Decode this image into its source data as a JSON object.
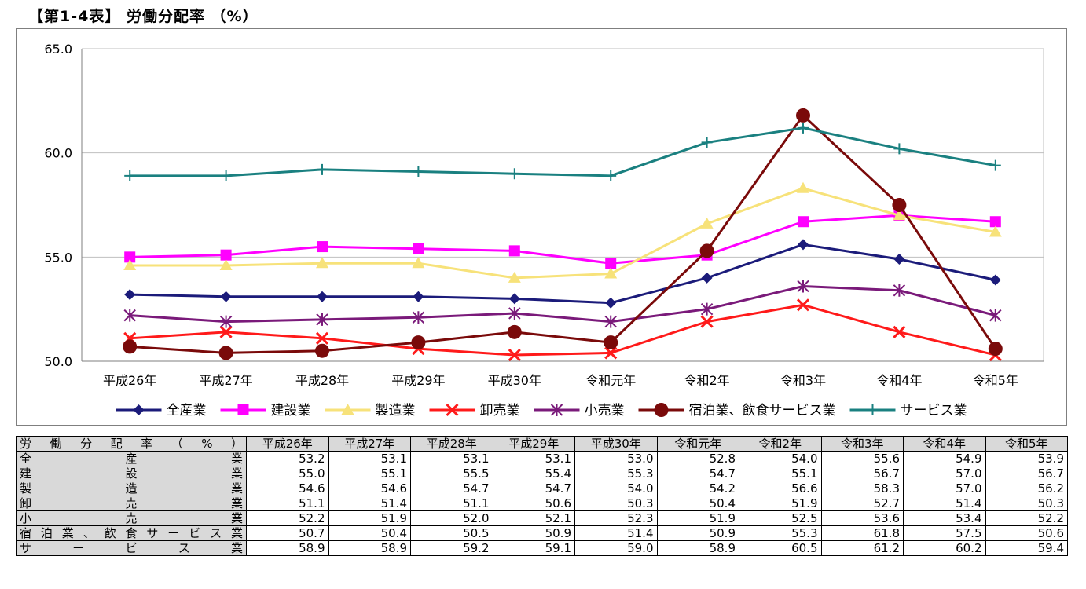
{
  "title": "【第1-4表】 労働分配率 （%）",
  "chart_data": {
    "type": "line",
    "title": "【第1-4表】 労働分配率 （%）",
    "xlabel": "",
    "ylabel": "",
    "categories": [
      "平成26年",
      "平成27年",
      "平成28年",
      "平成29年",
      "平成30年",
      "令和元年",
      "令和2年",
      "令和3年",
      "令和4年",
      "令和5年"
    ],
    "ylim": [
      50.0,
      65.0
    ],
    "yticks": [
      "50.0",
      "55.0",
      "60.0",
      "65.0"
    ],
    "grid": true,
    "legend_position": "bottom",
    "series": [
      {
        "name": "全産業",
        "color": "#1b1b7a",
        "marker": "diamond",
        "values": [
          53.2,
          53.1,
          53.1,
          53.1,
          53.0,
          52.8,
          54.0,
          55.6,
          54.9,
          53.9
        ]
      },
      {
        "name": "建設業",
        "color": "#ff00ff",
        "marker": "square",
        "values": [
          55.0,
          55.1,
          55.5,
          55.4,
          55.3,
          54.7,
          55.1,
          56.7,
          57.0,
          56.7
        ]
      },
      {
        "name": "製造業",
        "color": "#f7e27a",
        "marker": "triangle",
        "values": [
          54.6,
          54.6,
          54.7,
          54.7,
          54.0,
          54.2,
          56.6,
          58.3,
          57.0,
          56.2
        ]
      },
      {
        "name": "卸売業",
        "color": "#ff1a1a",
        "marker": "x",
        "values": [
          51.1,
          51.4,
          51.1,
          50.6,
          50.3,
          50.4,
          51.9,
          52.7,
          51.4,
          50.3
        ]
      },
      {
        "name": "小売業",
        "color": "#7a1a7a",
        "marker": "star",
        "values": [
          52.2,
          51.9,
          52.0,
          52.1,
          52.3,
          51.9,
          52.5,
          53.6,
          53.4,
          52.2
        ]
      },
      {
        "name": "宿泊業、飲食サービス業",
        "color": "#7a0a0a",
        "marker": "circle",
        "values": [
          50.7,
          50.4,
          50.5,
          50.9,
          51.4,
          50.9,
          55.3,
          61.8,
          57.5,
          50.6
        ]
      },
      {
        "name": "サービス業",
        "color": "#1a8080",
        "marker": "plus",
        "values": [
          58.9,
          58.9,
          59.2,
          59.1,
          59.0,
          58.9,
          60.5,
          61.2,
          60.2,
          59.4
        ]
      }
    ]
  },
  "table": {
    "header_label": "労働分配率（%）",
    "rows": [
      {
        "label": "全産業",
        "values": [
          "53.2",
          "53.1",
          "53.1",
          "53.1",
          "53.0",
          "52.8",
          "54.0",
          "55.6",
          "54.9",
          "53.9"
        ]
      },
      {
        "label": "建設業",
        "values": [
          "55.0",
          "55.1",
          "55.5",
          "55.4",
          "55.3",
          "54.7",
          "55.1",
          "56.7",
          "57.0",
          "56.7"
        ]
      },
      {
        "label": "製造業",
        "values": [
          "54.6",
          "54.6",
          "54.7",
          "54.7",
          "54.0",
          "54.2",
          "56.6",
          "58.3",
          "57.0",
          "56.2"
        ]
      },
      {
        "label": "卸売業",
        "values": [
          "51.1",
          "51.4",
          "51.1",
          "50.6",
          "50.3",
          "50.4",
          "51.9",
          "52.7",
          "51.4",
          "50.3"
        ]
      },
      {
        "label": "小売業",
        "values": [
          "52.2",
          "51.9",
          "52.0",
          "52.1",
          "52.3",
          "51.9",
          "52.5",
          "53.6",
          "53.4",
          "52.2"
        ]
      },
      {
        "label": "宿泊業、飲食サービス業",
        "values": [
          "50.7",
          "50.4",
          "50.5",
          "50.9",
          "51.4",
          "50.9",
          "55.3",
          "61.8",
          "57.5",
          "50.6"
        ]
      },
      {
        "label": "サービス業",
        "values": [
          "58.9",
          "58.9",
          "59.2",
          "59.1",
          "59.0",
          "58.9",
          "60.5",
          "61.2",
          "60.2",
          "59.4"
        ]
      }
    ]
  }
}
